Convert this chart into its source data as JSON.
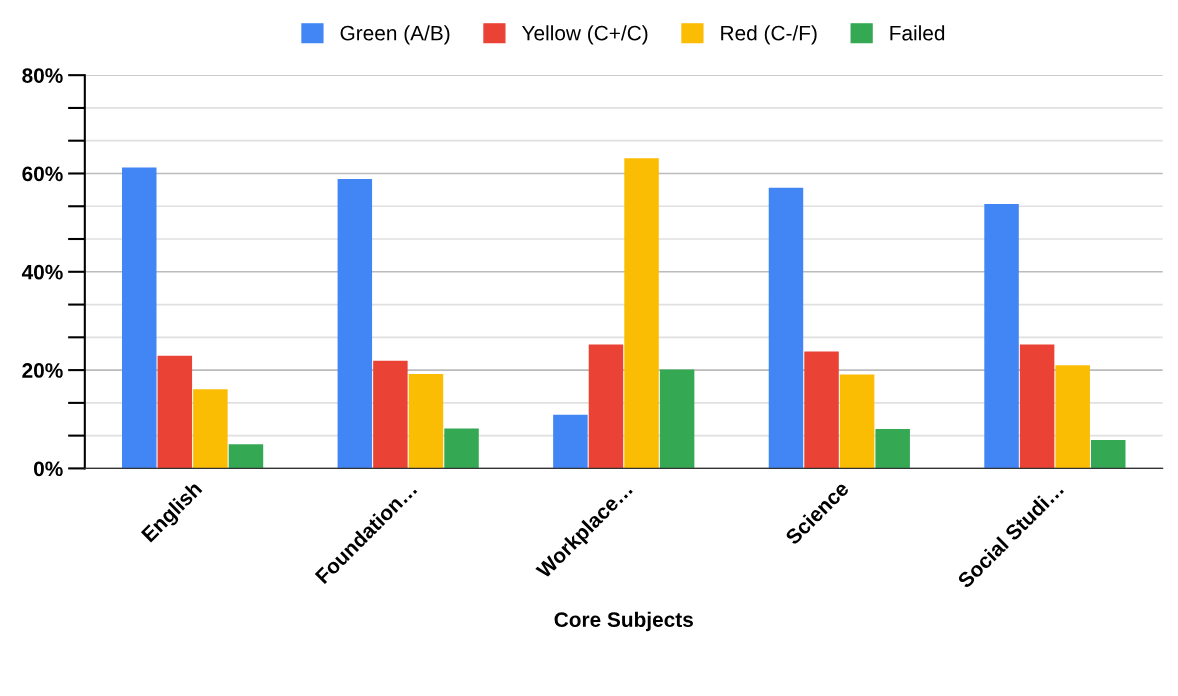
{
  "chart_data": {
    "type": "bar",
    "xlabel": "Core Subjects",
    "categories": [
      "English",
      "Foundation…",
      "Workplace…",
      "Science",
      "Social Studi…"
    ],
    "series": [
      {
        "name": "Green (A/B)",
        "color": "#4285f4",
        "values": [
          61.2,
          58.9,
          10.9,
          57.1,
          53.8
        ]
      },
      {
        "name": "Yellow (C+/C)",
        "color": "#ea4335",
        "values": [
          22.9,
          21.9,
          25.2,
          23.8,
          25.2
        ]
      },
      {
        "name": "Red (C-/F)",
        "color": "#fbbc04",
        "values": [
          16.1,
          19.2,
          63.1,
          19.1,
          21.0
        ]
      },
      {
        "name": "Failed",
        "color": "#34a853",
        "values": [
          4.9,
          8.1,
          20.1,
          8.0,
          5.8
        ]
      }
    ],
    "ylim": [
      0,
      80
    ],
    "yticks": [
      {
        "value": 0,
        "label": "0%"
      },
      {
        "value": 6.67,
        "label": null
      },
      {
        "value": 13.33,
        "label": null
      },
      {
        "value": 20,
        "label": "20%"
      },
      {
        "value": 26.67,
        "label": null
      },
      {
        "value": 33.33,
        "label": null
      },
      {
        "value": 40,
        "label": "40%"
      },
      {
        "value": 46.67,
        "label": null
      },
      {
        "value": 53.33,
        "label": null
      },
      {
        "value": 60,
        "label": "60%"
      },
      {
        "value": 66.67,
        "label": null
      },
      {
        "value": 73.33,
        "label": null
      },
      {
        "value": 80,
        "label": "80%"
      }
    ],
    "grid": "y",
    "legend": "top"
  }
}
